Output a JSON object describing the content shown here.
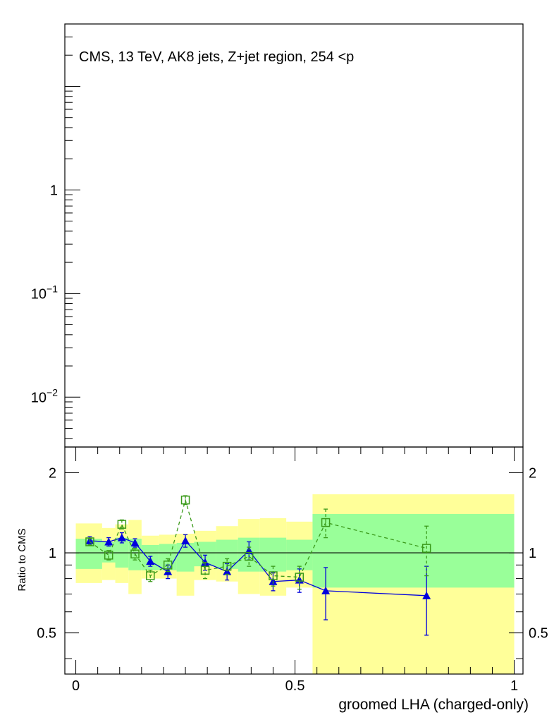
{
  "chart_data": [
    {
      "panel": "upper",
      "type": "line",
      "title": "CMS, 13 TeV, AK8 jets, Z+jet region, 254 <p",
      "xlabel": "",
      "ylabel": "",
      "y_scale": "log",
      "ylim": [
        0.0033,
        40
      ],
      "y_tick_labels": [
        {
          "y": 1,
          "base": "1",
          "exp": ""
        },
        {
          "y": 0.1,
          "base": "10",
          "exp": "−1"
        },
        {
          "y": 0.01,
          "base": "10",
          "exp": "−2"
        }
      ],
      "series": []
    },
    {
      "panel": "lower",
      "type": "line",
      "xlabel": "groomed LHA (charged-only)",
      "ylabel": "Ratio to CMS",
      "y_scale": "log",
      "xlim": [
        -0.025,
        1.02
      ],
      "ylim": [
        0.35,
        2.5
      ],
      "x_tick_labels": [
        {
          "x": 0,
          "label": "0"
        },
        {
          "x": 0.5,
          "label": "0.5"
        },
        {
          "x": 1,
          "label": "1"
        }
      ],
      "y_tick_labels": [
        {
          "y": 0.5,
          "label": "0.5"
        },
        {
          "y": 1,
          "label": "1"
        },
        {
          "y": 2,
          "label": "2"
        }
      ],
      "reference_line": 1,
      "bins": [
        {
          "lo": 0.0,
          "hi": 0.06,
          "stat_lo": 0.87,
          "stat_hi": 1.13,
          "tot_lo": 0.77,
          "tot_hi": 1.29
        },
        {
          "lo": 0.06,
          "hi": 0.09,
          "stat_lo": 0.92,
          "stat_hi": 1.1,
          "tot_lo": 0.79,
          "tot_hi": 1.24
        },
        {
          "lo": 0.09,
          "hi": 0.12,
          "stat_lo": 0.88,
          "stat_hi": 1.14,
          "tot_lo": 0.77,
          "tot_hi": 1.28
        },
        {
          "lo": 0.12,
          "hi": 0.15,
          "stat_lo": 0.86,
          "stat_hi": 1.13,
          "tot_lo": 0.7,
          "tot_hi": 1.33
        },
        {
          "lo": 0.15,
          "hi": 0.19,
          "stat_lo": 0.86,
          "stat_hi": 1.07,
          "tot_lo": 0.8,
          "tot_hi": 1.16
        },
        {
          "lo": 0.19,
          "hi": 0.23,
          "stat_lo": 0.86,
          "stat_hi": 1.08,
          "tot_lo": 0.8,
          "tot_hi": 1.17
        },
        {
          "lo": 0.23,
          "hi": 0.27,
          "stat_lo": 0.85,
          "stat_hi": 1.09,
          "tot_lo": 0.69,
          "tot_hi": 1.18
        },
        {
          "lo": 0.27,
          "hi": 0.32,
          "stat_lo": 0.89,
          "stat_hi": 1.1,
          "tot_lo": 0.79,
          "tot_hi": 1.21
        },
        {
          "lo": 0.32,
          "hi": 0.37,
          "stat_lo": 0.87,
          "stat_hi": 1.12,
          "tot_lo": 0.78,
          "tot_hi": 1.26
        },
        {
          "lo": 0.37,
          "hi": 0.42,
          "stat_lo": 0.85,
          "stat_hi": 1.14,
          "tot_lo": 0.7,
          "tot_hi": 1.34
        },
        {
          "lo": 0.42,
          "hi": 0.48,
          "stat_lo": 0.85,
          "stat_hi": 1.14,
          "tot_lo": 0.69,
          "tot_hi": 1.35
        },
        {
          "lo": 0.48,
          "hi": 0.54,
          "stat_lo": 0.86,
          "stat_hi": 1.12,
          "tot_lo": 0.74,
          "tot_hi": 1.31
        },
        {
          "lo": 0.54,
          "hi": 1.0,
          "stat_lo": 0.74,
          "stat_hi": 1.4,
          "tot_lo": 0.35,
          "tot_hi": 1.66
        }
      ],
      "series": [
        {
          "marker": "triangle",
          "color": "#0000dd",
          "line": "solid",
          "x": [
            0.032,
            0.075,
            0.105,
            0.135,
            0.17,
            0.21,
            0.25,
            0.295,
            0.345,
            0.395,
            0.45,
            0.51,
            0.57,
            0.8
          ],
          "y": [
            1.11,
            1.1,
            1.14,
            1.09,
            0.93,
            0.85,
            1.11,
            0.92,
            0.85,
            1.02,
            0.78,
            0.79,
            0.72,
            0.69
          ],
          "err": [
            0.04,
            0.04,
            0.05,
            0.04,
            0.04,
            0.05,
            0.06,
            0.06,
            0.06,
            0.08,
            0.06,
            0.08,
            0.16,
            0.2
          ]
        },
        {
          "marker": "open-square",
          "color": "#3a9a1a",
          "line": "dashed",
          "x": [
            0.032,
            0.075,
            0.105,
            0.135,
            0.17,
            0.21,
            0.25,
            0.295,
            0.345,
            0.395,
            0.45,
            0.51,
            0.57,
            0.8
          ],
          "y": [
            1.1,
            0.98,
            1.28,
            0.99,
            0.82,
            0.9,
            1.58,
            0.86,
            0.89,
            0.97,
            0.82,
            0.81,
            1.3,
            1.04
          ],
          "err": [
            0.03,
            0.04,
            0.05,
            0.05,
            0.04,
            0.05,
            0.06,
            0.06,
            0.06,
            0.08,
            0.07,
            0.08,
            0.16,
            0.22
          ]
        }
      ],
      "colors": {
        "total_uncertainty": "#ffff99",
        "stat_uncertainty": "#99ff99"
      }
    }
  ]
}
